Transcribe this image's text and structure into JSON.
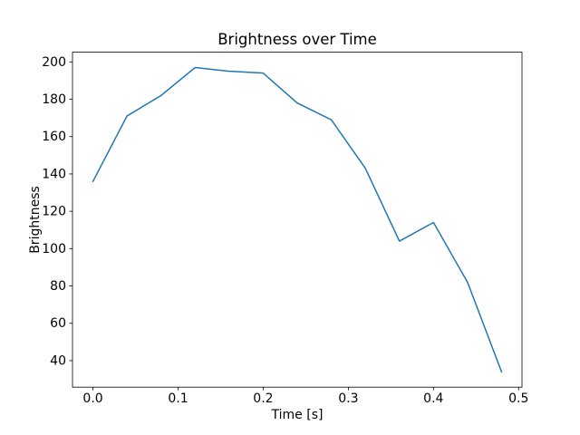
{
  "chart_data": {
    "type": "line",
    "title": "Brightness over Time",
    "xlabel": "Time [s]",
    "ylabel": "Brightness",
    "x": [
      0.0,
      0.04,
      0.08,
      0.12,
      0.16,
      0.2,
      0.24,
      0.28,
      0.32,
      0.36,
      0.4,
      0.44,
      0.48
    ],
    "y": [
      136,
      171,
      182,
      197,
      195,
      194,
      178,
      169,
      143,
      104,
      114,
      82,
      34
    ],
    "xlim": [
      -0.024,
      0.504
    ],
    "ylim": [
      25.8,
      205.2
    ],
    "xticks": [
      0.0,
      0.1,
      0.2,
      0.3,
      0.4,
      0.5
    ],
    "yticks": [
      40,
      60,
      80,
      100,
      120,
      140,
      160,
      180,
      200
    ],
    "line_color": "#1f77b4",
    "axis_color": "#000000",
    "background_color": "#ffffff",
    "grid": false,
    "legend": null
  }
}
